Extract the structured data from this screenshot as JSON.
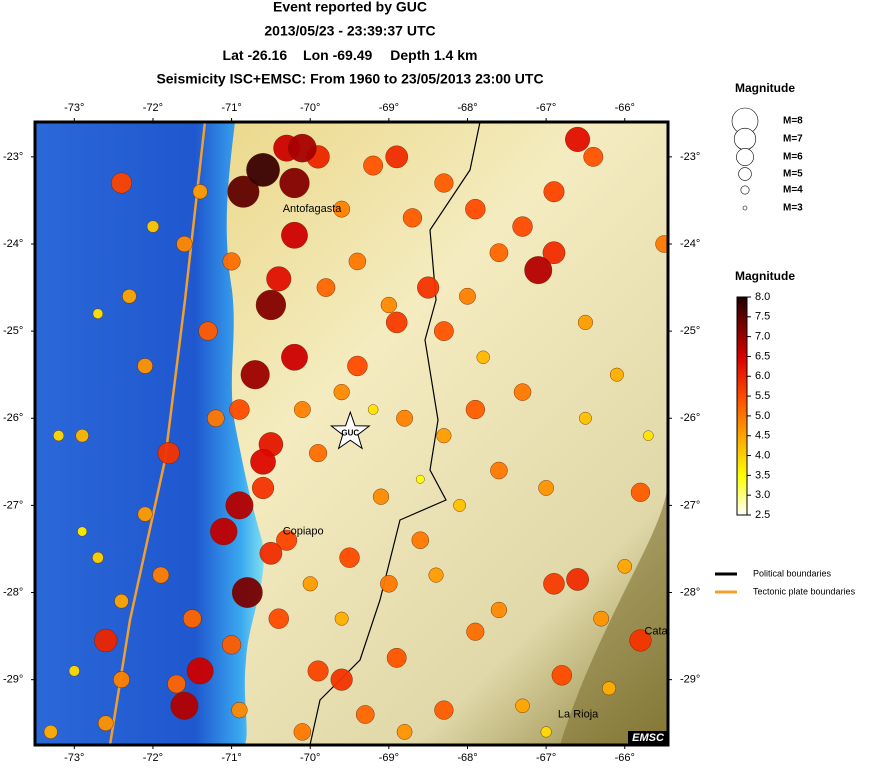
{
  "header": {
    "title": "Event reported by GUC",
    "datetime": "2013/05/23 - 23:39:37 UTC",
    "lat_prefix": "Lat",
    "lon_prefix": "Lon",
    "depth_prefix": "Depth",
    "depth": "1.4 km",
    "subtitle": "Seismicity ISC+EMSC: From 1960 to 23/05/2013 23:00 UTC"
  },
  "map": {
    "lonlim": [
      -73.5,
      -65.45
    ],
    "latlim": [
      -22.6,
      -29.75
    ],
    "lonticks": [
      {
        "value": -73,
        "label": "-73°"
      },
      {
        "value": -72,
        "label": "-72°"
      },
      {
        "value": -71,
        "label": "-71°"
      },
      {
        "value": -70,
        "label": "-70°"
      },
      {
        "value": -69,
        "label": "-69°"
      },
      {
        "value": -68,
        "label": "-68°"
      },
      {
        "value": -67,
        "label": "-67°"
      },
      {
        "value": -66,
        "label": "-66°"
      }
    ],
    "latticks": [
      {
        "value": -23,
        "label": "-23°"
      },
      {
        "value": -24,
        "label": "-24°"
      },
      {
        "value": -25,
        "label": "-25°"
      },
      {
        "value": -26,
        "label": "-26°"
      },
      {
        "value": -27,
        "label": "-27°"
      },
      {
        "value": -28,
        "label": "-28°"
      },
      {
        "value": -29,
        "label": "-29°"
      }
    ],
    "places": [
      {
        "name": "Antofagasta",
        "lon": -70.35,
        "lat": -23.6
      },
      {
        "name": "Copiapo",
        "lon": -70.35,
        "lat": -27.3
      },
      {
        "name": "La Rioja",
        "lon": -66.85,
        "lat": -29.4
      },
      {
        "name": "Cata",
        "lon": -65.75,
        "lat": -28.45
      }
    ],
    "event": {
      "label": "GUC",
      "lon": -69.49,
      "lat": -26.16
    },
    "credit": "EMSC",
    "quakes": [
      [
        -70.6,
        -23.15,
        7.8
      ],
      [
        -70.85,
        -23.4,
        7.5
      ],
      [
        -70.2,
        -23.3,
        7.2
      ],
      [
        -70.1,
        -22.9,
        6.9
      ],
      [
        -70.3,
        -22.9,
        6.6
      ],
      [
        -70.5,
        -24.7,
        7.2
      ],
      [
        -70.7,
        -25.5,
        7.0
      ],
      [
        -70.2,
        -25.3,
        6.6
      ],
      [
        -70.9,
        -27.0,
        6.8
      ],
      [
        -71.1,
        -27.3,
        6.7
      ],
      [
        -70.8,
        -28.0,
        7.3
      ],
      [
        -71.6,
        -29.3,
        6.8
      ],
      [
        -71.4,
        -28.9,
        6.6
      ],
      [
        -72.6,
        -28.55,
        6.0
      ],
      [
        -67.1,
        -24.3,
        6.8
      ],
      [
        -66.6,
        -22.8,
        6.3
      ],
      [
        -70.2,
        -23.9,
        6.6
      ],
      [
        -70.5,
        -26.3,
        6.2
      ],
      [
        -70.6,
        -26.5,
        6.4
      ],
      [
        -70.4,
        -24.4,
        6.3
      ],
      [
        -71.8,
        -26.4,
        5.8
      ],
      [
        -72.4,
        -23.3,
        5.6
      ],
      [
        -69.9,
        -23.0,
        6.0
      ],
      [
        -69.2,
        -23.1,
        5.4
      ],
      [
        -68.9,
        -23.0,
        5.9
      ],
      [
        -68.3,
        -23.3,
        5.3
      ],
      [
        -67.9,
        -23.6,
        5.5
      ],
      [
        -66.9,
        -23.4,
        5.6
      ],
      [
        -66.4,
        -23.0,
        5.4
      ],
      [
        -67.3,
        -23.8,
        5.5
      ],
      [
        -66.9,
        -24.1,
        5.9
      ],
      [
        -65.5,
        -24.0,
        5.0
      ],
      [
        -68.5,
        -24.5,
        5.8
      ],
      [
        -68.3,
        -25.0,
        5.4
      ],
      [
        -68.9,
        -24.9,
        5.7
      ],
      [
        -69.4,
        -25.4,
        5.5
      ],
      [
        -67.3,
        -25.7,
        5.0
      ],
      [
        -67.9,
        -25.9,
        5.3
      ],
      [
        -68.8,
        -26.0,
        4.9
      ],
      [
        -69.6,
        -25.7,
        4.8
      ],
      [
        -70.6,
        -26.8,
        5.8
      ],
      [
        -70.3,
        -27.4,
        5.6
      ],
      [
        -70.5,
        -27.55,
        5.9
      ],
      [
        -69.5,
        -27.6,
        5.5
      ],
      [
        -68.6,
        -27.4,
        5.0
      ],
      [
        -67.6,
        -26.6,
        5.0
      ],
      [
        -65.8,
        -26.85,
        5.3
      ],
      [
        -66.9,
        -27.9,
        5.7
      ],
      [
        -66.6,
        -27.85,
        5.9
      ],
      [
        -65.8,
        -28.55,
        5.8
      ],
      [
        -66.8,
        -28.95,
        5.5
      ],
      [
        -67.9,
        -28.45,
        5.1
      ],
      [
        -68.9,
        -28.75,
        5.4
      ],
      [
        -69.9,
        -28.9,
        5.6
      ],
      [
        -69.6,
        -29.0,
        5.8
      ],
      [
        -69.3,
        -29.4,
        5.2
      ],
      [
        -68.3,
        -29.35,
        5.3
      ],
      [
        -70.9,
        -29.35,
        4.8
      ],
      [
        -71.7,
        -29.05,
        5.2
      ],
      [
        -72.4,
        -29.0,
        4.9
      ],
      [
        -72.6,
        -29.5,
        4.7
      ],
      [
        -71.5,
        -28.3,
        5.2
      ],
      [
        -71.9,
        -27.8,
        4.9
      ],
      [
        -72.1,
        -27.1,
        4.6
      ],
      [
        -72.1,
        -25.4,
        4.7
      ],
      [
        -72.3,
        -24.6,
        4.5
      ],
      [
        -71.6,
        -24.0,
        4.8
      ],
      [
        -71.3,
        -25.0,
        5.3
      ],
      [
        -71.0,
        -24.2,
        5.1
      ],
      [
        -70.9,
        -25.9,
        5.5
      ],
      [
        -71.2,
        -26.0,
        5.0
      ],
      [
        -69.8,
        -24.5,
        5.2
      ],
      [
        -69.4,
        -24.2,
        5.0
      ],
      [
        -69.0,
        -24.7,
        4.8
      ],
      [
        -68.0,
        -24.6,
        4.9
      ],
      [
        -67.6,
        -24.1,
        5.2
      ],
      [
        -66.5,
        -24.9,
        4.6
      ],
      [
        -66.1,
        -25.5,
        4.4
      ],
      [
        -67.0,
        -26.8,
        4.7
      ],
      [
        -68.3,
        -26.2,
        4.6
      ],
      [
        -69.1,
        -26.9,
        4.8
      ],
      [
        -69.9,
        -26.4,
        5.1
      ],
      [
        -70.1,
        -25.9,
        4.9
      ],
      [
        -69.0,
        -27.9,
        5.0
      ],
      [
        -68.4,
        -27.8,
        4.6
      ],
      [
        -67.6,
        -28.2,
        4.8
      ],
      [
        -66.3,
        -28.3,
        4.7
      ],
      [
        -66.0,
        -27.7,
        4.5
      ],
      [
        -66.2,
        -29.1,
        4.4
      ],
      [
        -67.3,
        -29.3,
        4.5
      ],
      [
        -68.8,
        -29.6,
        4.7
      ],
      [
        -70.1,
        -29.6,
        5.0
      ],
      [
        -71.0,
        -28.6,
        5.3
      ],
      [
        -70.4,
        -28.3,
        5.5
      ],
      [
        -72.9,
        -26.2,
        4.3
      ],
      [
        -73.2,
        -26.2,
        3.9
      ],
      [
        -72.7,
        -24.8,
        3.8
      ],
      [
        -72.9,
        -27.3,
        3.7
      ],
      [
        -73.0,
        -28.9,
        3.9
      ],
      [
        -73.3,
        -29.6,
        4.4
      ],
      [
        -72.0,
        -23.8,
        4.1
      ],
      [
        -71.4,
        -23.4,
        4.6
      ],
      [
        -69.6,
        -23.6,
        4.9
      ],
      [
        -68.7,
        -23.7,
        5.3
      ],
      [
        -67.8,
        -25.3,
        4.3
      ],
      [
        -68.1,
        -27.0,
        4.2
      ],
      [
        -69.6,
        -28.3,
        4.4
      ],
      [
        -67.0,
        -29.6,
        3.9
      ],
      [
        -65.7,
        -26.2,
        3.8
      ],
      [
        -66.5,
        -26.0,
        4.2
      ],
      [
        -68.6,
        -26.7,
        3.5
      ],
      [
        -69.2,
        -25.9,
        3.8
      ],
      [
        -70.0,
        -27.9,
        4.6
      ],
      [
        -72.4,
        -28.1,
        4.5
      ],
      [
        -72.7,
        -27.6,
        4.0
      ]
    ]
  },
  "size_legend": {
    "title": "Magnitude",
    "items": [
      {
        "label": "M=8",
        "mag": 8
      },
      {
        "label": "M=7",
        "mag": 7
      },
      {
        "label": "M=6",
        "mag": 6
      },
      {
        "label": "M=5",
        "mag": 5
      },
      {
        "label": "M=4",
        "mag": 4
      },
      {
        "label": "M=3",
        "mag": 3
      }
    ]
  },
  "color_legend": {
    "title": "Magnitude",
    "lim": [
      2.5,
      8
    ],
    "ticks": [
      {
        "value": 8,
        "label": "8.0"
      },
      {
        "value": 7.5,
        "label": "7.5"
      },
      {
        "value": 7,
        "label": "7.0"
      },
      {
        "value": 6.5,
        "label": "6.5"
      },
      {
        "value": 6,
        "label": "6.0"
      },
      {
        "value": 5.5,
        "label": "5.5"
      },
      {
        "value": 5,
        "label": "5.0"
      },
      {
        "value": 4.5,
        "label": "4.5"
      },
      {
        "value": 4,
        "label": "4.0"
      },
      {
        "value": 3.5,
        "label": "3.5"
      },
      {
        "value": 3,
        "label": "3.0"
      },
      {
        "value": 2.5,
        "label": "2.5"
      }
    ],
    "stops": [
      [
        2.5,
        "#ffffff"
      ],
      [
        3.5,
        "#ffff00"
      ],
      [
        4.5,
        "#ffa500"
      ],
      [
        5.5,
        "#ff4a00"
      ],
      [
        6.5,
        "#d80000"
      ],
      [
        7.5,
        "#600000"
      ],
      [
        8,
        "#200000"
      ]
    ]
  },
  "line_legend": {
    "items": [
      {
        "label": "Political boundaries",
        "color": "#000000"
      },
      {
        "label": "Tectonic plate boundaries",
        "color": "#f0a030"
      }
    ]
  }
}
